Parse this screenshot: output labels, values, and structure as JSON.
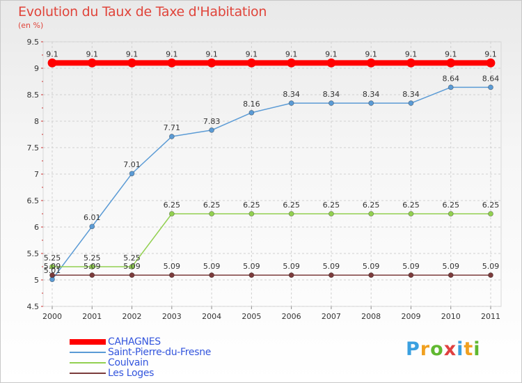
{
  "header": {
    "title": "Evolution du Taux de Taxe d'Habitation",
    "subtitle": "(en %)"
  },
  "chart_data": {
    "type": "line",
    "title": "Evolution du Taux de Taxe d'Habitation",
    "ylabel": "(en %)",
    "xlabel": "",
    "categories": [
      "2000",
      "2001",
      "2002",
      "2003",
      "2004",
      "2005",
      "2006",
      "2007",
      "2008",
      "2009",
      "2010",
      "2011"
    ],
    "ylim": [
      4.5,
      9.5
    ],
    "yticks": [
      4.5,
      5,
      5.5,
      6,
      6.5,
      7,
      7.5,
      8,
      8.5,
      9,
      9.5
    ],
    "grid": true,
    "legend_position": "bottom-left",
    "series": [
      {
        "name": "CAHAGNES",
        "color": "#ff0000",
        "values": [
          9.1,
          9.1,
          9.1,
          9.1,
          9.1,
          9.1,
          9.1,
          9.1,
          9.1,
          9.1,
          9.1,
          9.1
        ],
        "labels": [
          "9.1",
          "9.1",
          "9.1",
          "9.1",
          "9.1",
          "9.1",
          "9.1",
          "9.1",
          "9.1",
          "9.1",
          "9.1",
          "9.1"
        ]
      },
      {
        "name": "Saint-Pierre-du-Fresne",
        "color": "#5b9bd5",
        "values": [
          5.01,
          6.01,
          7.01,
          7.71,
          7.83,
          8.16,
          8.34,
          8.34,
          8.34,
          8.34,
          8.64,
          8.64
        ],
        "labels": [
          "5.01",
          "6.01",
          "7.01",
          "7.71",
          "7.83",
          "8.16",
          "8.34",
          "8.34",
          "8.34",
          "8.34",
          "8.64",
          "8.64"
        ]
      },
      {
        "name": "Coulvain",
        "color": "#92d050",
        "values": [
          5.25,
          5.25,
          5.25,
          6.25,
          6.25,
          6.25,
          6.25,
          6.25,
          6.25,
          6.25,
          6.25,
          6.25
        ],
        "labels": [
          "5.25",
          "5.25",
          "5.25",
          "6.25",
          "6.25",
          "6.25",
          "6.25",
          "6.25",
          "6.25",
          "6.25",
          "6.25",
          "6.25"
        ]
      },
      {
        "name": "Les Loges",
        "color": "#7b3b3b",
        "values": [
          5.09,
          5.09,
          5.09,
          5.09,
          5.09,
          5.09,
          5.09,
          5.09,
          5.09,
          5.09,
          5.09,
          5.09
        ],
        "labels": [
          "5.09",
          "5.09",
          "5.09",
          "5.09",
          "5.09",
          "5.09",
          "5.09",
          "5.09",
          "5.09",
          "5.09",
          "5.09",
          "5.09"
        ]
      }
    ]
  },
  "logo": {
    "letters": [
      "P",
      "r",
      "o",
      "x",
      "i",
      "t",
      "i"
    ],
    "colors": [
      "#3aa0e0",
      "#f0a020",
      "#60b830",
      "#e04040",
      "#3aa0e0",
      "#f0a020",
      "#60b830"
    ]
  }
}
